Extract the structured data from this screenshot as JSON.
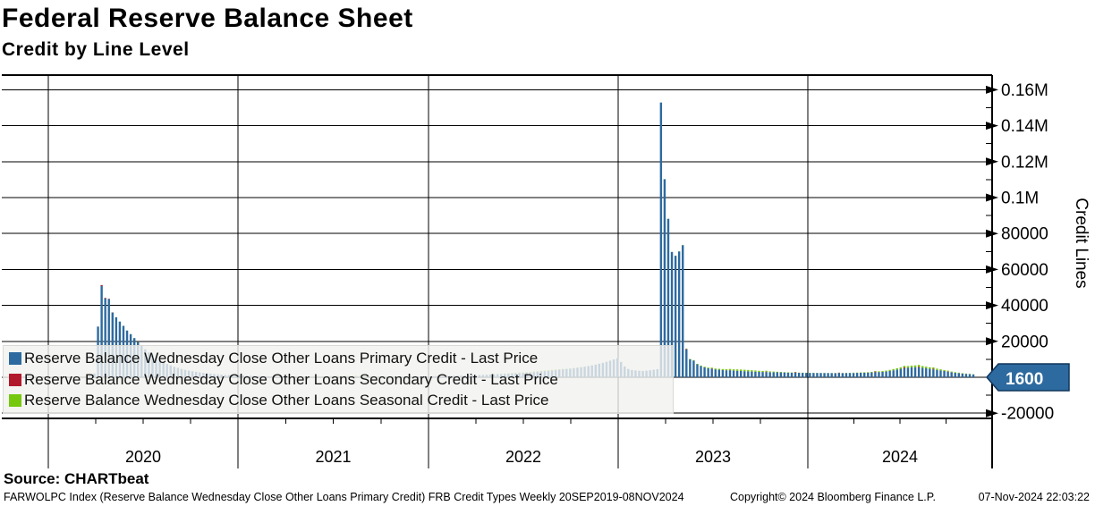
{
  "header": {
    "title": "Federal Reserve Balance Sheet",
    "subtitle": "Credit by Line Level"
  },
  "source_line": "Source: CHARTbeat",
  "footer": {
    "left": "FARWOLPC Index (Reserve Balance Wednesday Close Other Loans Primary Credit) FRB Credit Types  Weekly 20SEP2019-08NOV2024",
    "copyright": "Copyright© 2024 Bloomberg Finance L.P.",
    "datetime": "07-Nov-2024 22:03:22"
  },
  "legend": {
    "items": [
      {
        "label": "Reserve Balance Wednesday Close Other Loans Primary Credit - Last Price",
        "color": "#2d6a9f"
      },
      {
        "label": "Reserve Balance Wednesday Close Other Loans Secondary Credit - Last Price",
        "color": "#b2182b"
      },
      {
        "label": "Reserve Balance Wednesday Close Other Loans Seasonal Credit - Last Price",
        "color": "#76c80e"
      }
    ]
  },
  "y_axis": {
    "title": "Credit Lines",
    "tick_labels": [
      "0.16M",
      "0.14M",
      "0.12M",
      "0.1M",
      "80000",
      "60000",
      "40000",
      "20000",
      "-20000"
    ],
    "tick_values": [
      160000,
      140000,
      120000,
      100000,
      80000,
      60000,
      40000,
      20000,
      -20000
    ],
    "minor_tick_values": [
      150000,
      130000,
      110000,
      90000,
      70000,
      50000,
      30000,
      10000,
      -10000
    ],
    "last_price_tag": {
      "value": "1600",
      "fill": "#2d6a9f",
      "border": "#10365c",
      "text_color": "#ffffff"
    }
  },
  "x_axis": {
    "year_labels": [
      "2020",
      "2021",
      "2022",
      "2023",
      "2024"
    ]
  },
  "chart_data": {
    "type": "bar",
    "stacked": true,
    "interval": "weekly",
    "range": "20SEP2019-08NOV2024",
    "ylim": [
      -22900,
      168200
    ],
    "grid": true,
    "legend_position": "inside-bottom-left",
    "categories_note": "268 weekly observations from 2019-09-20 to 2024-11-08, values in USD millions",
    "series": [
      {
        "name": "Reserve Balance Wednesday Close Other Loans Primary Credit - Last Price",
        "color": "#2d6a9f",
        "last_price": 1600,
        "values": [
          30,
          25,
          20,
          35,
          45,
          40,
          30,
          25,
          20,
          15,
          20,
          25,
          30,
          20,
          15,
          10,
          15,
          20,
          15,
          10,
          5,
          10,
          15,
          40,
          120,
          2100,
          28200,
          50800,
          43900,
          43500,
          36000,
          33400,
          31000,
          28600,
          26000,
          24000,
          21800,
          19500,
          17500,
          15500,
          13800,
          12200,
          10700,
          9400,
          8300,
          7300,
          6500,
          5800,
          5200,
          4600,
          4100,
          3700,
          3300,
          3000,
          2700,
          2400,
          2200,
          2000,
          1800,
          1600,
          1450,
          1300,
          1200,
          1100,
          1000,
          950,
          900,
          850,
          800,
          700,
          650,
          600,
          550,
          500,
          480,
          450,
          420,
          400,
          380,
          360,
          350,
          340,
          330,
          320,
          310,
          300,
          320,
          340,
          360,
          380,
          400,
          420,
          440,
          460,
          480,
          500,
          480,
          460,
          440,
          420,
          400,
          380,
          360,
          350,
          340,
          330,
          320,
          310,
          300,
          320,
          340,
          360,
          380,
          400,
          420,
          450,
          480,
          520,
          560,
          600,
          650,
          700,
          750,
          800,
          850,
          900,
          950,
          1000,
          1050,
          1100,
          1150,
          1200,
          1300,
          1400,
          1500,
          1600,
          1700,
          1800,
          1900,
          2000,
          2100,
          2200,
          2300,
          2400,
          2500,
          2600,
          2800,
          3000,
          3200,
          3400,
          3600,
          3800,
          4000,
          4200,
          4400,
          4600,
          4800,
          5000,
          5300,
          5600,
          5900,
          6200,
          6600,
          7000,
          7500,
          8000,
          8600,
          9200,
          9900,
          10600,
          8500,
          6000,
          4600,
          4000,
          3800,
          3600,
          3500,
          3700,
          3900,
          4200,
          4500,
          152900,
          110200,
          88200,
          69700,
          67600,
          70000,
          73500,
          15500,
          10000,
          9300,
          7200,
          6200,
          5500,
          5000,
          4700,
          4400,
          4200,
          4000,
          3900,
          3800,
          3700,
          3600,
          3500,
          3400,
          3300,
          3200,
          3100,
          3000,
          2950,
          2900,
          2850,
          2800,
          2750,
          2700,
          2650,
          2600,
          2550,
          2500,
          2480,
          2460,
          2440,
          2420,
          2400,
          2400,
          2380,
          2360,
          2340,
          2320,
          2300,
          2320,
          2340,
          2360,
          2380,
          2400,
          2450,
          2500,
          2550,
          2600,
          2700,
          2800,
          2900,
          3000,
          3200,
          3500,
          3900,
          4300,
          4700,
          5000,
          5300,
          5500,
          5600,
          5500,
          5300,
          5000,
          4700,
          4400,
          4100,
          3800,
          3500,
          3100,
          2800,
          2500,
          2300,
          2100,
          1900,
          1750,
          1600
        ]
      },
      {
        "name": "Reserve Balance Wednesday Close Other Loans Secondary Credit - Last Price",
        "color": "#b2182b",
        "values": [
          0,
          0,
          0,
          0,
          0,
          0,
          0,
          0,
          0,
          0,
          0,
          0,
          0,
          0,
          0,
          0,
          0,
          0,
          0,
          0,
          0,
          0,
          0,
          0,
          0,
          0,
          0,
          500,
          300,
          200,
          100,
          0,
          0,
          0,
          0,
          0,
          0,
          0,
          0,
          0,
          0,
          0,
          0,
          0,
          0,
          0,
          0,
          0,
          0,
          0,
          0,
          0,
          0,
          0,
          0,
          0,
          0,
          0,
          0,
          0,
          0,
          0,
          0,
          0,
          0,
          0,
          0,
          0,
          0,
          0,
          0,
          0,
          0,
          0,
          0,
          0,
          0,
          0,
          0,
          0,
          0,
          0,
          0,
          0,
          0,
          0,
          0,
          0,
          0,
          0,
          0,
          0,
          0,
          0,
          0,
          0,
          0,
          0,
          0,
          0,
          0,
          0,
          0,
          0,
          0,
          0,
          0,
          0,
          0,
          0,
          0,
          0,
          0,
          0,
          0,
          0,
          0,
          0,
          0,
          0,
          0,
          0,
          0,
          0,
          0,
          0,
          0,
          0,
          0,
          0,
          0,
          0,
          0,
          0,
          0,
          0,
          0,
          0,
          0,
          0,
          0,
          0,
          0,
          0,
          0,
          0,
          0,
          0,
          0,
          0,
          0,
          0,
          0,
          0,
          0,
          0,
          0,
          0,
          0,
          0,
          0,
          0,
          0,
          0,
          0,
          0,
          0,
          0,
          0,
          0,
          0,
          0,
          0,
          0,
          0,
          0,
          0,
          0,
          0,
          0,
          0,
          0,
          0,
          0,
          0,
          0,
          0,
          0,
          300,
          0,
          0,
          0,
          0,
          0,
          0,
          200,
          0,
          0,
          0,
          0,
          150,
          0,
          0,
          0,
          0,
          0,
          0,
          0,
          0,
          0,
          250,
          0,
          0,
          0,
          0,
          0,
          0,
          0,
          300,
          0,
          0,
          0,
          0,
          0,
          0,
          0,
          0,
          0,
          0,
          0,
          200,
          0,
          0,
          0,
          0,
          0,
          0,
          0,
          0,
          0,
          350,
          0,
          0,
          0,
          0,
          0,
          0,
          0,
          500,
          0,
          0,
          0,
          400,
          0,
          0,
          0,
          300,
          0,
          0,
          0,
          150,
          0,
          0,
          0,
          0,
          0,
          0,
          0
        ]
      },
      {
        "name": "Reserve Balance Wednesday Close Other Loans Seasonal Credit - Last Price",
        "color": "#76c80e",
        "values": [
          120,
          110,
          100,
          90,
          80,
          70,
          60,
          50,
          40,
          35,
          30,
          25,
          20,
          20,
          20,
          15,
          15,
          15,
          15,
          10,
          10,
          10,
          10,
          15,
          15,
          20,
          20,
          25,
          30,
          30,
          35,
          40,
          45,
          50,
          60,
          70,
          80,
          90,
          100,
          110,
          120,
          130,
          140,
          150,
          150,
          145,
          140,
          130,
          120,
          110,
          100,
          90,
          80,
          70,
          60,
          50,
          45,
          40,
          35,
          30,
          28,
          26,
          24,
          22,
          20,
          18,
          16,
          15,
          15,
          15,
          15,
          15,
          15,
          20,
          20,
          25,
          25,
          30,
          35,
          40,
          50,
          60,
          70,
          85,
          100,
          120,
          140,
          160,
          180,
          200,
          220,
          240,
          260,
          280,
          300,
          300,
          290,
          280,
          260,
          240,
          220,
          200,
          180,
          160,
          140,
          120,
          100,
          85,
          70,
          60,
          50,
          45,
          40,
          35,
          30,
          28,
          26,
          24,
          22,
          20,
          20,
          20,
          20,
          20,
          20,
          25,
          25,
          30,
          35,
          40,
          50,
          60,
          70,
          85,
          100,
          120,
          140,
          165,
          190,
          215,
          240,
          265,
          290,
          315,
          340,
          365,
          390,
          400,
          390,
          370,
          350,
          325,
          300,
          275,
          250,
          225,
          200,
          175,
          150,
          130,
          110,
          95,
          80,
          70,
          60,
          52,
          46,
          40,
          36,
          32,
          28,
          25,
          25,
          25,
          25,
          25,
          25,
          30,
          30,
          35,
          40,
          50,
          60,
          75,
          90,
          110,
          130,
          155,
          180,
          210,
          240,
          275,
          310,
          350,
          390,
          430,
          470,
          520,
          570,
          620,
          670,
          720,
          770,
          800,
          790,
          760,
          720,
          670,
          610,
          550,
          490,
          430,
          370,
          315,
          265,
          220,
          180,
          150,
          120,
          100,
          85,
          70,
          60,
          50,
          45,
          45,
          45,
          50,
          55,
          60,
          70,
          80,
          95,
          110,
          130,
          155,
          185,
          220,
          260,
          305,
          355,
          410,
          470,
          535,
          600,
          670,
          740,
          810,
          875,
          930,
          975,
          1000,
          990,
          960,
          915,
          855,
          785,
          705,
          620,
          535,
          455,
          380,
          310,
          250,
          200,
          160,
          130,
          105
        ]
      }
    ]
  }
}
